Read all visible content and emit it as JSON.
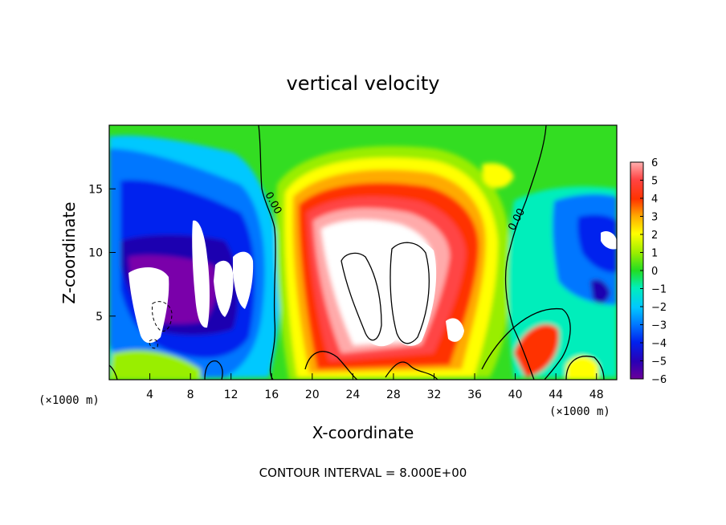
{
  "chart_data": {
    "type": "heatmap",
    "title": "vertical velocity",
    "xlabel": "X-coordinate",
    "ylabel": "Z-coordinate",
    "x_unit_left": "(×1000 m)",
    "x_unit_right": "(×1000 m)",
    "xlim": [
      0,
      50
    ],
    "ylim": [
      0,
      20
    ],
    "x_ticks": [
      4,
      8,
      12,
      16,
      20,
      24,
      28,
      32,
      36,
      40,
      44,
      48
    ],
    "y_ticks": [
      5,
      10,
      15
    ],
    "colorbar": {
      "min": -6,
      "max": 6,
      "ticks": [
        -6,
        -5,
        -4,
        -3,
        -2,
        -1,
        0,
        1,
        2,
        3,
        4,
        5,
        6
      ],
      "tick_labels": [
        "−6",
        "−5",
        "−4",
        "−3",
        "−2",
        "−1",
        "0",
        "1",
        "2",
        "3",
        "4",
        "5",
        "6"
      ],
      "colors": [
        "#7a00aa",
        "#1a00b0",
        "#0022ee",
        "#0077ff",
        "#00c8ff",
        "#00ffcc",
        "#22ee22",
        "#99ee00",
        "#ffff00",
        "#ffaa00",
        "#ff3300",
        "#ff2222",
        "#ff8080",
        "#ffaaaa"
      ]
    },
    "contour_labels": [
      "0.00",
      "0.00"
    ],
    "contour_interval_text": "CONTOUR INTERVAL = 8.000E+00",
    "field_features": [
      {
        "name": "updraft core",
        "x": 26,
        "z": 9,
        "w": 12
      },
      {
        "name": "updraft core",
        "x": 30,
        "z": 7,
        "w": 14
      },
      {
        "name": "downdraft region",
        "x": 7,
        "z": 9,
        "w": -9
      },
      {
        "name": "downdraft region",
        "x": 48,
        "z": 11,
        "w": -7
      }
    ]
  }
}
